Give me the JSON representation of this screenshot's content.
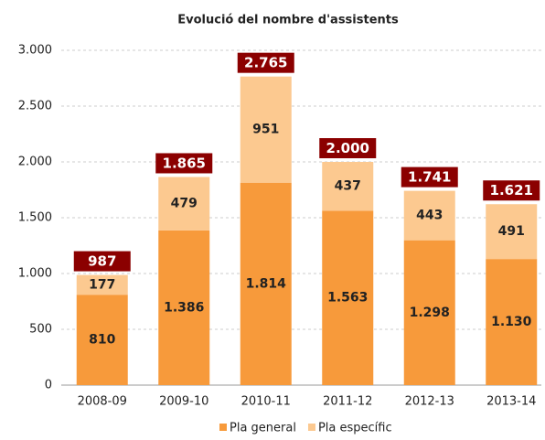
{
  "chart_data": {
    "type": "stacked_bar",
    "title": "Evolució del nombre d'assistents",
    "categories": [
      "2008-09",
      "2009-10",
      "2010-11",
      "2011-12",
      "2012-13",
      "2013-14"
    ],
    "series": [
      {
        "name": "Pla general",
        "color": "#f79a3b",
        "values": [
          810,
          1386,
          1814,
          1563,
          1298,
          1130
        ],
        "value_labels": [
          "810",
          "1.386",
          "1.814",
          "1.563",
          "1.298",
          "1.130"
        ]
      },
      {
        "name": "Pla específic",
        "color": "#fcc990",
        "values": [
          177,
          479,
          951,
          437,
          443,
          491
        ],
        "value_labels": [
          "177",
          "479",
          "951",
          "437",
          "443",
          "491"
        ]
      }
    ],
    "totals": {
      "color": "#8b0000",
      "values": [
        987,
        1865,
        2765,
        2000,
        1741,
        1621
      ],
      "value_labels": [
        "987",
        "1.865",
        "2.765",
        "2.000",
        "1.741",
        "1.621"
      ]
    },
    "ylim": [
      0,
      3000
    ],
    "yticks": [
      0,
      500,
      {
        "value": 1000,
        "label": "1.000"
      },
      {
        "value": 1500,
        "label": "1.500"
      },
      {
        "value": 2000,
        "label": "2.000"
      },
      {
        "value": 2500,
        "label": "2.500"
      },
      {
        "value": 3000,
        "label": "3.000"
      }
    ],
    "grid": true,
    "legend": "bottom"
  }
}
